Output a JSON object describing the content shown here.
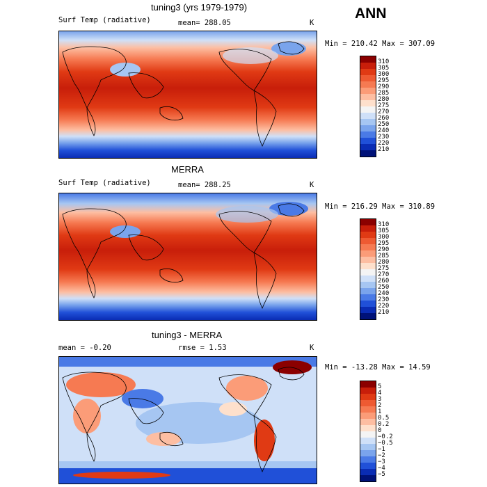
{
  "season": "ANN",
  "panels": [
    {
      "title": "tuning3 (yrs 1979-1979)",
      "variable": "Surf Temp (radiative)",
      "mean_text": "mean= 288.05",
      "units": "K",
      "range_text": "Min = 210.42 Max = 307.09",
      "colorbar": {
        "labels": [
          "310",
          "305",
          "300",
          "295",
          "290",
          "285",
          "280",
          "275",
          "270",
          "260",
          "250",
          "240",
          "230",
          "220",
          "210"
        ],
        "colors": [
          "#8b0000",
          "#c81e0a",
          "#e03a14",
          "#ee5a32",
          "#f67a52",
          "#fb9c78",
          "#fdbea2",
          "#fee0cc",
          "#f4f4f4",
          "#cfe0f8",
          "#a6c6f2",
          "#7aa4ec",
          "#4a7ae6",
          "#2050d8",
          "#0a2cb4",
          "#001278"
        ]
      }
    },
    {
      "title": "MERRA",
      "variable": "Surf Temp (radiative)",
      "mean_text": "mean= 288.25",
      "units": "K",
      "range_text": "Min = 216.29 Max = 310.89",
      "colorbar": {
        "labels": [
          "310",
          "305",
          "300",
          "295",
          "290",
          "285",
          "280",
          "275",
          "270",
          "260",
          "250",
          "240",
          "230",
          "220",
          "210"
        ],
        "colors": [
          "#8b0000",
          "#c81e0a",
          "#e03a14",
          "#ee5a32",
          "#f67a52",
          "#fb9c78",
          "#fdbea2",
          "#fee0cc",
          "#f4f4f4",
          "#cfe0f8",
          "#a6c6f2",
          "#7aa4ec",
          "#4a7ae6",
          "#2050d8",
          "#0a2cb4",
          "#001278"
        ]
      }
    },
    {
      "title": "tuning3 - MERRA",
      "variable": "",
      "mean_text": "mean =   -0.20",
      "rmse_text": "rmse =    1.53",
      "units": "K",
      "range_text": "Min = -13.28 Max =  14.59",
      "colorbar": {
        "labels": [
          "5",
          "4",
          "3",
          "2",
          "1",
          "0.5",
          "0.2",
          "0",
          "−0.2",
          "−0.5",
          "−1",
          "−2",
          "−3",
          "−4",
          "−5"
        ],
        "colors": [
          "#8b0000",
          "#c81e0a",
          "#e03a14",
          "#ee5a32",
          "#f67a52",
          "#fb9c78",
          "#fdbea2",
          "#fee0cc",
          "#f4f4f4",
          "#cfe0f8",
          "#a6c6f2",
          "#7aa4ec",
          "#4a7ae6",
          "#2050d8",
          "#0a2cb4",
          "#001278"
        ]
      }
    }
  ]
}
